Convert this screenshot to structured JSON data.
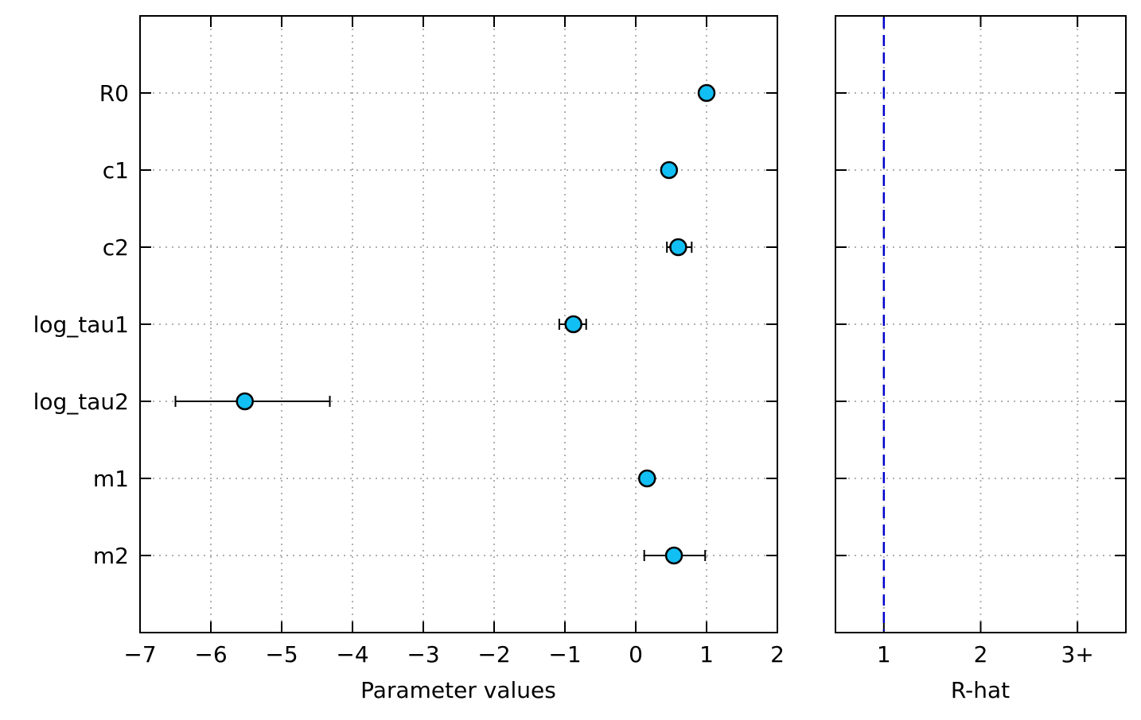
{
  "chart_data": [
    {
      "type": "scatter",
      "style": "forest-plot",
      "xlabel": "Parameter values",
      "xlim": [
        -7,
        2
      ],
      "xticks": [
        -7,
        -6,
        -5,
        -4,
        -3,
        -2,
        -1,
        0,
        1,
        2
      ],
      "xtick_labels": [
        "−7",
        "−6",
        "−5",
        "−4",
        "−3",
        "−2",
        "−1",
        "0",
        "1",
        "2"
      ],
      "categories": [
        "R0",
        "c1",
        "c2",
        "log_tau1",
        "log_tau2",
        "m1",
        "m2"
      ],
      "values": [
        1.0,
        0.47,
        0.6,
        -0.88,
        -5.52,
        0.16,
        0.54
      ],
      "ci_low": [
        1.0,
        0.47,
        0.44,
        -1.08,
        -6.5,
        0.16,
        0.12
      ],
      "ci_high": [
        1.0,
        0.47,
        0.79,
        -0.7,
        -4.32,
        0.16,
        0.98
      ],
      "grid": true,
      "point_color": "#12bff4"
    },
    {
      "type": "scatter",
      "xlabel": "R-hat",
      "xlim": [
        0.5,
        3.5
      ],
      "xticks": [
        1,
        2,
        3
      ],
      "xtick_labels": [
        "1",
        "2",
        "3+"
      ],
      "reference_line": 1,
      "reference_color": "#0000cc",
      "grid": true
    }
  ]
}
